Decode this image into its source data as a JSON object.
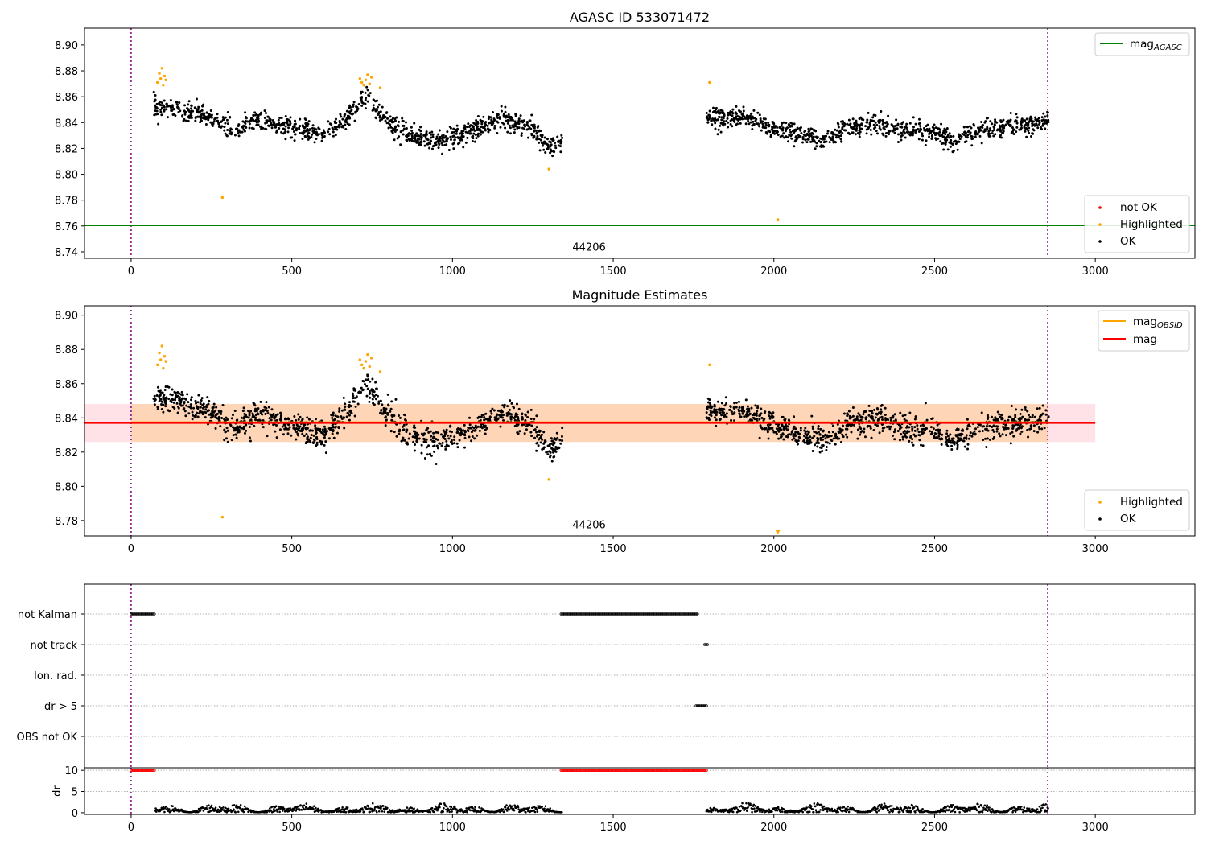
{
  "chart_data": [
    {
      "type": "scatter",
      "title": "AGASC ID 533071472",
      "xlim": [
        -145,
        3310
      ],
      "ylim": [
        8.735,
        8.913
      ],
      "xticks": [
        "0",
        "500",
        "1000",
        "1500",
        "2000",
        "2500",
        "3000"
      ],
      "yticks": [
        "8.74",
        "8.76",
        "8.78",
        "8.80",
        "8.82",
        "8.84",
        "8.86",
        "8.88",
        "8.90"
      ],
      "vlines": [
        0,
        2852
      ],
      "obsid_label": {
        "text": "44206",
        "x": 1425,
        "y": 8.741
      },
      "lines": [
        {
          "name": "mag_agasc",
          "label_main": "mag",
          "label_sub": "AGASC",
          "y": 8.7605,
          "x": [
            -145,
            3310
          ],
          "color": "#008000"
        }
      ],
      "legend_lines_position": "upper-right",
      "legend_points_position": "lower-right",
      "legend_points": [
        {
          "label": "not OK",
          "color": "#ff0000"
        },
        {
          "label": "Highlighted",
          "color": "#ffa500"
        },
        {
          "label": "OK",
          "color": "#000000"
        }
      ],
      "series": [
        {
          "name": "Highlighted",
          "color": "#ffa500",
          "values": [
            [
              82,
              8.871
            ],
            [
              88,
              8.878
            ],
            [
              92,
              8.874
            ],
            [
              96,
              8.882
            ],
            [
              100,
              8.869
            ],
            [
              104,
              8.876
            ],
            [
              108,
              8.873
            ],
            [
              284,
              8.782
            ],
            [
              712,
              8.874
            ],
            [
              718,
              8.871
            ],
            [
              724,
              8.869
            ],
            [
              730,
              8.873
            ],
            [
              736,
              8.877
            ],
            [
              742,
              8.87
            ],
            [
              748,
              8.875
            ],
            [
              775,
              8.867
            ],
            [
              1300,
              8.804
            ],
            [
              1800,
              8.871
            ],
            [
              2012,
              8.765
            ]
          ]
        },
        {
          "name": "OK",
          "color": "#000000",
          "segments": [
            {
              "x0": 70,
              "x1": 1342,
              "n": 1060,
              "base": [
                [
                  70,
                  8.853
                ],
                [
                  120,
                  8.851
                ],
                [
                  180,
                  8.848
                ],
                [
                  250,
                  8.843
                ],
                [
                  320,
                  8.833
                ],
                [
                  390,
                  8.842
                ],
                [
                  450,
                  8.838
                ],
                [
                  520,
                  8.835
                ],
                [
                  600,
                  8.83
                ],
                [
                  670,
                  8.843
                ],
                [
                  730,
                  8.861
                ],
                [
                  780,
                  8.845
                ],
                [
                  850,
                  8.832
                ],
                [
                  950,
                  8.826
                ],
                [
                  1030,
                  8.83
                ],
                [
                  1100,
                  8.838
                ],
                [
                  1170,
                  8.843
                ],
                [
                  1240,
                  8.836
                ],
                [
                  1300,
                  8.822
                ],
                [
                  1342,
                  8.826
                ]
              ],
              "noise": 0.0065
            },
            {
              "x0": 1790,
              "x1": 2855,
              "n": 900,
              "base": [
                [
                  1790,
                  8.845
                ],
                [
                  1860,
                  8.843
                ],
                [
                  1920,
                  8.844
                ],
                [
                  2000,
                  8.836
                ],
                [
                  2080,
                  8.83
                ],
                [
                  2160,
                  8.826
                ],
                [
                  2240,
                  8.836
                ],
                [
                  2320,
                  8.84
                ],
                [
                  2400,
                  8.833
                ],
                [
                  2480,
                  8.834
                ],
                [
                  2560,
                  8.826
                ],
                [
                  2640,
                  8.834
                ],
                [
                  2720,
                  8.837
                ],
                [
                  2800,
                  8.838
                ],
                [
                  2855,
                  8.84
                ]
              ],
              "noise": 0.0065
            }
          ]
        }
      ]
    },
    {
      "type": "scatter",
      "title": "Magnitude Estimates",
      "xlim": [
        -145,
        3310
      ],
      "ylim": [
        8.771,
        8.9055
      ],
      "xticks": [
        "0",
        "500",
        "1000",
        "1500",
        "2000",
        "2500",
        "3000"
      ],
      "yticks": [
        "8.78",
        "8.80",
        "8.82",
        "8.84",
        "8.86",
        "8.88",
        "8.90"
      ],
      "vlines": [
        0,
        2852
      ],
      "obsid_label": {
        "text": "44206",
        "x": 1425,
        "y": 8.7755
      },
      "bands": [
        {
          "x": [
            -145,
            3000
          ],
          "y": [
            8.8259,
            8.8481
          ],
          "color": "#ff9eb0",
          "opacity": 0.3
        },
        {
          "x": [
            0,
            2852
          ],
          "y": [
            8.8259,
            8.8481
          ],
          "color": "#ffa500",
          "opacity": 0.2
        }
      ],
      "lines": [
        {
          "name": "mag_obsid",
          "label_main": "mag",
          "label_sub": "OBSID",
          "y": 8.8375,
          "x": [
            0,
            2852
          ],
          "color": "#ffa500"
        },
        {
          "name": "mag",
          "label_main": "mag",
          "label_sub": "",
          "y": 8.837,
          "x": [
            -145,
            3000
          ],
          "color": "#ff0000"
        }
      ],
      "legend_lines_position": "upper-right",
      "legend_points_position": "lower-right",
      "legend_points": [
        {
          "label": "Highlighted",
          "color": "#ffa500"
        },
        {
          "label": "OK",
          "color": "#000000"
        }
      ],
      "series": [
        {
          "name": "Highlighted",
          "color": "#ffa500",
          "values": [
            [
              82,
              8.871
            ],
            [
              88,
              8.878
            ],
            [
              92,
              8.874
            ],
            [
              96,
              8.882
            ],
            [
              100,
              8.869
            ],
            [
              104,
              8.876
            ],
            [
              108,
              8.873
            ],
            [
              284,
              8.782
            ],
            [
              712,
              8.874
            ],
            [
              718,
              8.871
            ],
            [
              724,
              8.869
            ],
            [
              730,
              8.873
            ],
            [
              736,
              8.877
            ],
            [
              742,
              8.87
            ],
            [
              748,
              8.875
            ],
            [
              775,
              8.867
            ],
            [
              1300,
              8.804
            ],
            [
              1800,
              8.871
            ],
            [
              2012,
              8.7735
            ]
          ]
        },
        {
          "name": "OK",
          "color": "#000000",
          "segments": [
            {
              "x0": 70,
              "x1": 1342,
              "n": 1060,
              "base": [
                [
                  70,
                  8.853
                ],
                [
                  120,
                  8.851
                ],
                [
                  180,
                  8.848
                ],
                [
                  250,
                  8.843
                ],
                [
                  320,
                  8.833
                ],
                [
                  390,
                  8.842
                ],
                [
                  450,
                  8.838
                ],
                [
                  520,
                  8.835
                ],
                [
                  600,
                  8.83
                ],
                [
                  670,
                  8.843
                ],
                [
                  730,
                  8.861
                ],
                [
                  780,
                  8.845
                ],
                [
                  850,
                  8.832
                ],
                [
                  950,
                  8.826
                ],
                [
                  1030,
                  8.83
                ],
                [
                  1100,
                  8.838
                ],
                [
                  1170,
                  8.843
                ],
                [
                  1240,
                  8.836
                ],
                [
                  1300,
                  8.822
                ],
                [
                  1342,
                  8.826
                ]
              ],
              "noise": 0.0065
            },
            {
              "x0": 1790,
              "x1": 2855,
              "n": 900,
              "base": [
                [
                  1790,
                  8.845
                ],
                [
                  1860,
                  8.843
                ],
                [
                  1920,
                  8.844
                ],
                [
                  2000,
                  8.836
                ],
                [
                  2080,
                  8.83
                ],
                [
                  2160,
                  8.826
                ],
                [
                  2240,
                  8.836
                ],
                [
                  2320,
                  8.84
                ],
                [
                  2400,
                  8.833
                ],
                [
                  2480,
                  8.834
                ],
                [
                  2560,
                  8.826
                ],
                [
                  2640,
                  8.834
                ],
                [
                  2720,
                  8.837
                ],
                [
                  2800,
                  8.838
                ],
                [
                  2855,
                  8.84
                ]
              ],
              "noise": 0.0065
            }
          ]
        }
      ]
    },
    {
      "type": "scatter",
      "title": "",
      "xlim": [
        -145,
        3310
      ],
      "categories": [
        "not Kalman",
        "not track",
        "Ion. rad.",
        "dr > 5",
        "OBS not OK"
      ],
      "flags": [
        {
          "category": "not Kalman",
          "ranges": [
            [
              0,
              72
            ],
            [
              1338,
              1765
            ]
          ]
        },
        {
          "category": "not track",
          "ranges": [
            [
              1785,
              1795
            ]
          ]
        },
        {
          "category": "Ion. rad.",
          "ranges": []
        },
        {
          "category": "dr > 5",
          "ranges": [
            [
              1758,
              1790
            ]
          ]
        },
        {
          "category": "OBS not OK",
          "ranges": []
        }
      ],
      "vlines": [
        0,
        2852
      ]
    },
    {
      "type": "scatter",
      "title": "",
      "xlim": [
        -145,
        3310
      ],
      "ylim": [
        -0.4,
        10.6
      ],
      "xticks": [
        "0",
        "500",
        "1000",
        "1500",
        "2000",
        "2500",
        "3000"
      ],
      "yticks": [
        "0",
        "5",
        "10"
      ],
      "ylabel": "dr",
      "vlines": [
        0,
        2852
      ],
      "series": [
        {
          "name": "not OK",
          "color": "#ff0000",
          "y": 10,
          "ranges": [
            [
              0,
              72
            ],
            [
              1338,
              1790
            ]
          ]
        },
        {
          "name": "dr",
          "color": "#000000",
          "segments": [
            {
              "x0": 75,
              "x1": 1342,
              "n": 700,
              "lo": 0.1,
              "hi": 2.4
            },
            {
              "x0": 1790,
              "x1": 2855,
              "n": 600,
              "lo": 0.1,
              "hi": 2.5
            }
          ]
        }
      ]
    }
  ]
}
